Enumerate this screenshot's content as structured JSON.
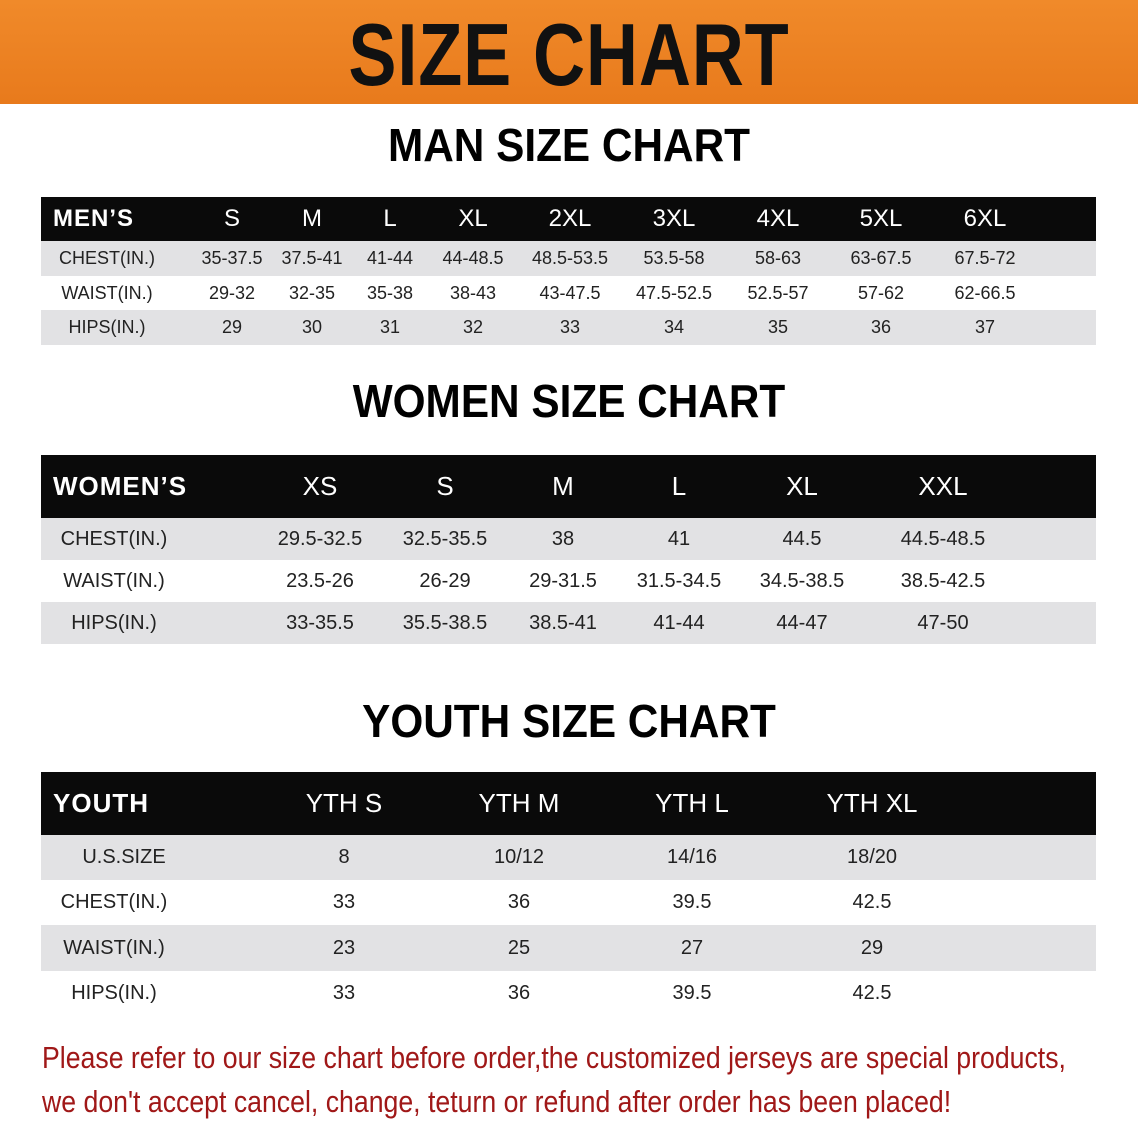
{
  "banner": {
    "title": "SIZE CHART"
  },
  "men": {
    "title": "MAN SIZE CHART",
    "header": [
      "MEN’S",
      "S",
      "M",
      "L",
      "XL",
      "2XL",
      "3XL",
      "4XL",
      "5XL",
      "6XL"
    ],
    "rows": [
      [
        "CHEST(IN.)",
        "35-37.5",
        "37.5-41",
        "41-44",
        "44-48.5",
        "48.5-53.5",
        "53.5-58",
        "58-63",
        "63-67.5",
        "67.5-72"
      ],
      [
        "WAIST(IN.)",
        "29-32",
        "32-35",
        "35-38",
        "38-43",
        "43-47.5",
        "47.5-52.5",
        "52.5-57",
        "57-62",
        "62-66.5"
      ],
      [
        "HIPS(IN.)",
        "29",
        "30",
        "31",
        "32",
        "33",
        "34",
        "35",
        "36",
        "37"
      ]
    ]
  },
  "women": {
    "title": "WOMEN SIZE CHART",
    "header": [
      "WOMEN’S",
      "XS",
      "S",
      "M",
      "L",
      "XL",
      "XXL"
    ],
    "rows": [
      [
        "CHEST(IN.)",
        "29.5-32.5",
        "32.5-35.5",
        "38",
        "41",
        "44.5",
        "44.5-48.5"
      ],
      [
        "WAIST(IN.)",
        "23.5-26",
        "26-29",
        "29-31.5",
        "31.5-34.5",
        "34.5-38.5",
        "38.5-42.5"
      ],
      [
        "HIPS(IN.)",
        "33-35.5",
        "35.5-38.5",
        "38.5-41",
        "41-44",
        "44-47",
        "47-50"
      ]
    ]
  },
  "youth": {
    "title": "YOUTH SIZE CHART",
    "header": [
      "YOUTH",
      "YTH S",
      "YTH M",
      "YTH L",
      "YTH XL"
    ],
    "rows": [
      [
        "U.S.SIZE",
        "8",
        "10/12",
        "14/16",
        "18/20"
      ],
      [
        "CHEST(IN.)",
        "33",
        "36",
        "39.5",
        "42.5"
      ],
      [
        "WAIST(IN.)",
        "23",
        "25",
        "27",
        "29"
      ],
      [
        "HIPS(IN.)",
        "33",
        "36",
        "39.5",
        "42.5"
      ]
    ]
  },
  "notice": {
    "line1": "Please refer to our size chart before order,the customized jerseys are special products,",
    "line2": "we don't accept cancel, change, teturn or refund after order has been placed!"
  },
  "colors": {
    "banner": "#ec7f22",
    "header_row": "#0a0a0a",
    "stripe": "#e2e2e4",
    "notice": "#a01818"
  }
}
